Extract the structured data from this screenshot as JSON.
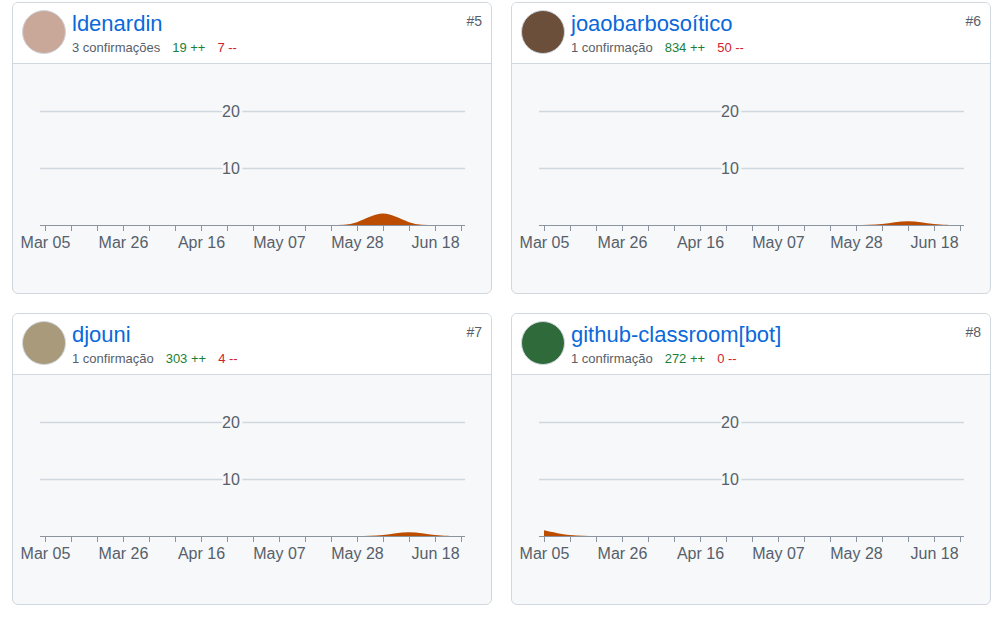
{
  "chart_data": [
    {
      "type": "area",
      "title": "ldenardin",
      "annotations": [
        "#5",
        "3 confirmações",
        "19 ++",
        "7 --"
      ],
      "categories": [
        "Mar 05",
        null,
        null,
        "Mar 26",
        null,
        null,
        "Apr 16",
        null,
        null,
        "May 07",
        null,
        null,
        "May 28",
        null,
        null,
        "Jun 18",
        null
      ],
      "values": [
        0,
        0,
        0,
        0,
        0,
        0,
        0,
        0,
        0,
        0,
        0,
        0,
        0,
        3,
        0,
        0,
        0
      ],
      "color": "#bc4c00",
      "ylim": [
        0,
        20
      ],
      "yticks": [
        10,
        20
      ],
      "grid": true
    },
    {
      "type": "area",
      "title": "joaobarbosoítico",
      "annotations": [
        "#6",
        "1 confirmação",
        "834 ++",
        "50 --"
      ],
      "categories": [
        "Mar 05",
        null,
        null,
        "Mar 26",
        null,
        null,
        "Apr 16",
        null,
        null,
        "May 07",
        null,
        null,
        "May 28",
        null,
        null,
        "Jun 18",
        null
      ],
      "values": [
        0,
        0,
        0,
        0,
        0,
        0,
        0,
        0,
        0,
        0,
        0,
        0,
        0,
        0,
        1,
        0,
        0
      ],
      "color": "#bc4c00",
      "ylim": [
        0,
        20
      ],
      "yticks": [
        10,
        20
      ],
      "grid": true
    },
    {
      "type": "area",
      "title": "djouni",
      "annotations": [
        "#7",
        "1 confirmação",
        "303 ++",
        "4 --"
      ],
      "categories": [
        "Mar 05",
        null,
        null,
        "Mar 26",
        null,
        null,
        "Apr 16",
        null,
        null,
        "May 07",
        null,
        null,
        "May 28",
        null,
        null,
        "Jun 18",
        null
      ],
      "values": [
        0,
        0,
        0,
        0,
        0,
        0,
        0,
        0,
        0,
        0,
        0,
        0,
        0,
        0,
        1,
        0,
        0
      ],
      "color": "#bc4c00",
      "ylim": [
        0,
        20
      ],
      "yticks": [
        10,
        20
      ],
      "grid": true
    },
    {
      "type": "area",
      "title": "github-classroom[bot]",
      "annotations": [
        "#8",
        "1 confirmação",
        "272 ++",
        "0 --"
      ],
      "categories": [
        "Mar 05",
        null,
        null,
        "Mar 26",
        null,
        null,
        "Apr 16",
        null,
        null,
        "May 07",
        null,
        null,
        "May 28",
        null,
        null,
        "Jun 18",
        null
      ],
      "values": [
        1,
        0,
        0,
        0,
        0,
        0,
        0,
        0,
        0,
        0,
        0,
        0,
        0,
        0,
        0,
        0,
        0
      ],
      "color": "#bc4c00",
      "ylim": [
        0,
        20
      ],
      "yticks": [
        10,
        20
      ],
      "grid": true
    }
  ]
}
